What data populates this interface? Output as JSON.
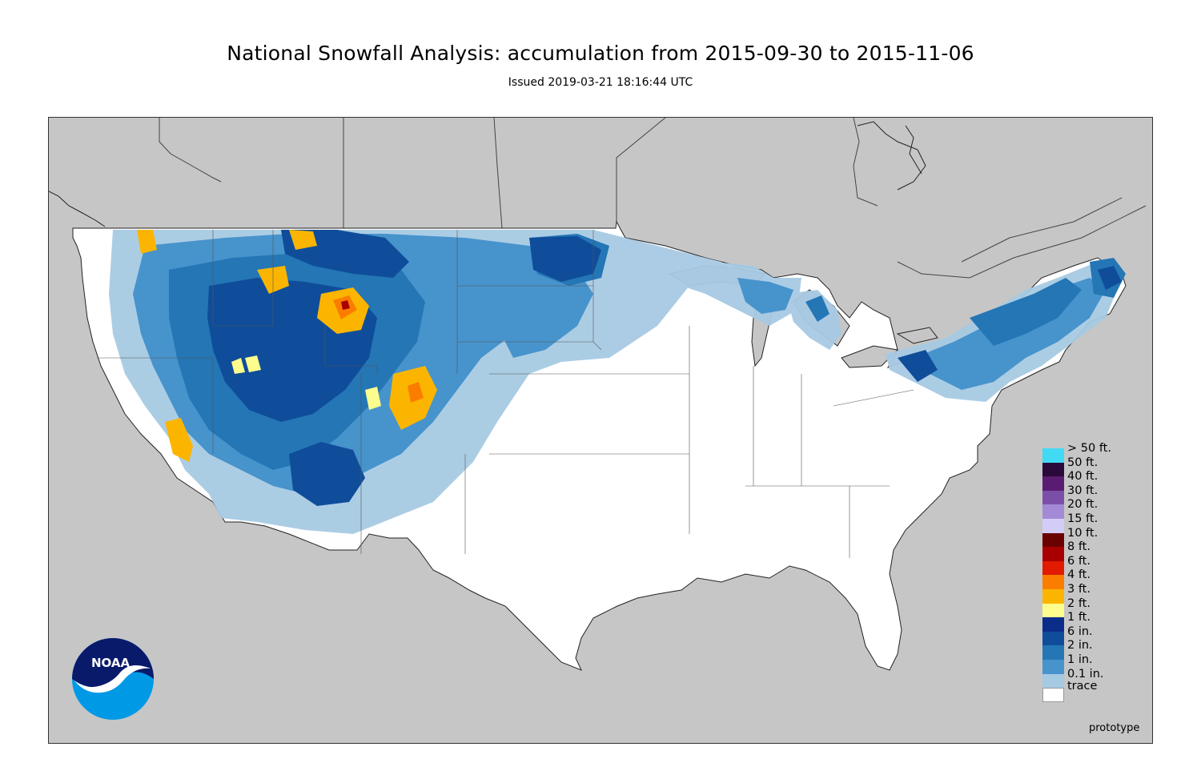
{
  "header": {
    "title": "National Snowfall Analysis: accumulation from 2015-09-30 to 2015-11-06",
    "subtitle": "Issued 2019-03-21 18:16:44 UTC"
  },
  "map": {
    "region": "Contiguous United States",
    "background_color": "#c6c6c6",
    "land_color": "#ffffff"
  },
  "legend": {
    "items": [
      {
        "label": "> 50 ft.",
        "color": "#41d9f4"
      },
      {
        "label": "50 ft.",
        "color": "#2a0a3a"
      },
      {
        "label": "40 ft.",
        "color": "#5a1c72"
      },
      {
        "label": "30 ft.",
        "color": "#7b4fa8"
      },
      {
        "label": "20 ft.",
        "color": "#a48ad6"
      },
      {
        "label": "15 ft.",
        "color": "#d3ccf6"
      },
      {
        "label": "10 ft.",
        "color": "#6b0000"
      },
      {
        "label": "8 ft.",
        "color": "#a80000"
      },
      {
        "label": "6 ft.",
        "color": "#e11a00"
      },
      {
        "label": "4 ft.",
        "color": "#fb7d00"
      },
      {
        "label": "3 ft.",
        "color": "#fbb500"
      },
      {
        "label": "2 ft.",
        "color": "#fdfd8e"
      },
      {
        "label": "1 ft.",
        "color": "#0c2c8a"
      },
      {
        "label": "6 in.",
        "color": "#0f4d9b"
      },
      {
        "label": "2 in.",
        "color": "#2476b5"
      },
      {
        "label": "1 in.",
        "color": "#4793cc"
      },
      {
        "label": "0.1 in.",
        "color": "#a7cae3"
      },
      {
        "label": "",
        "color": "#ffffff"
      }
    ],
    "last_label": "trace"
  },
  "footer": {
    "prototype": "prototype"
  },
  "logo": {
    "text": "NOAA",
    "outer_color": "#0099e6",
    "inner_color": "#0a1a6b"
  }
}
